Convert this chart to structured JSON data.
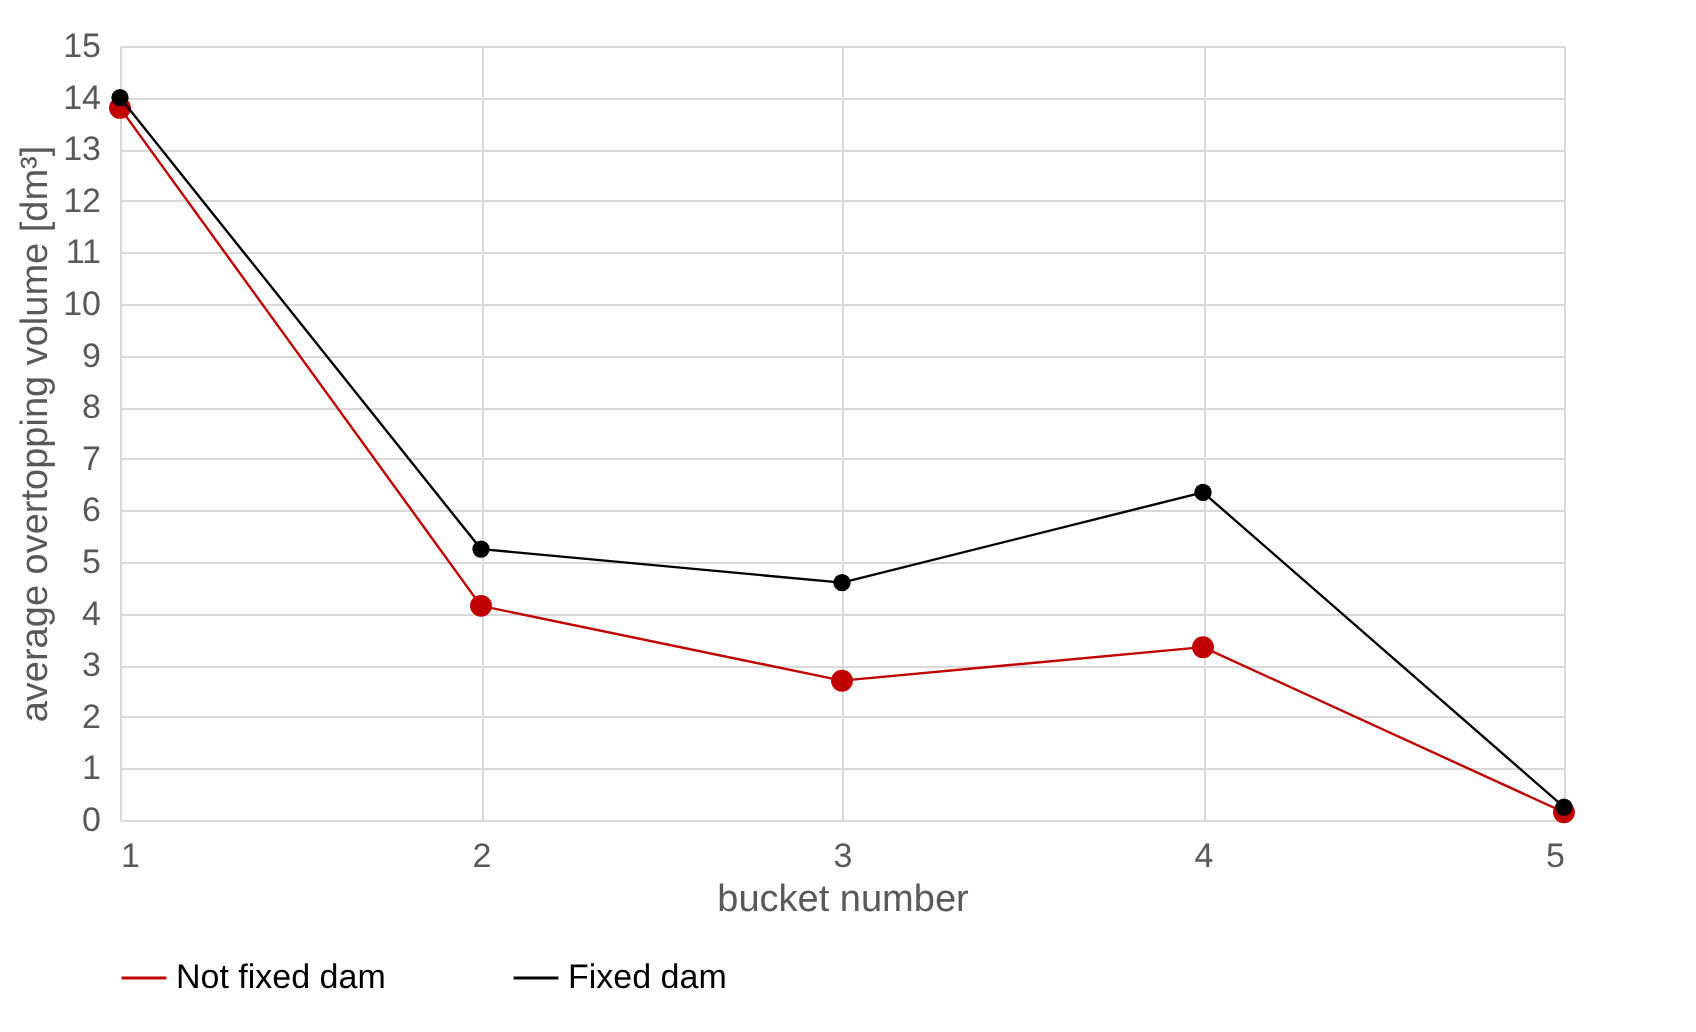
{
  "chart_data": {
    "type": "line",
    "xlabel": "bucket number",
    "ylabel": "average overtopping volume [dm³]",
    "x": [
      1,
      2,
      3,
      4,
      5
    ],
    "xlim": [
      1,
      5
    ],
    "xticks": [
      1,
      2,
      3,
      4,
      5
    ],
    "ylim": [
      0,
      15
    ],
    "yticks": [
      0,
      1,
      2,
      3,
      4,
      5,
      6,
      7,
      8,
      9,
      10,
      11,
      12,
      13,
      14,
      15
    ],
    "grid": true,
    "legend": "bottom",
    "marker": "circle",
    "line_style": "solid",
    "series": [
      {
        "name": "Not fixed dam",
        "color": "#c00000",
        "values": [
          13.8,
          4.15,
          2.7,
          3.35,
          0.15
        ]
      },
      {
        "name": "Fixed dam",
        "color": "#000000",
        "values": [
          14.0,
          5.25,
          4.6,
          6.35,
          0.25
        ]
      }
    ]
  }
}
